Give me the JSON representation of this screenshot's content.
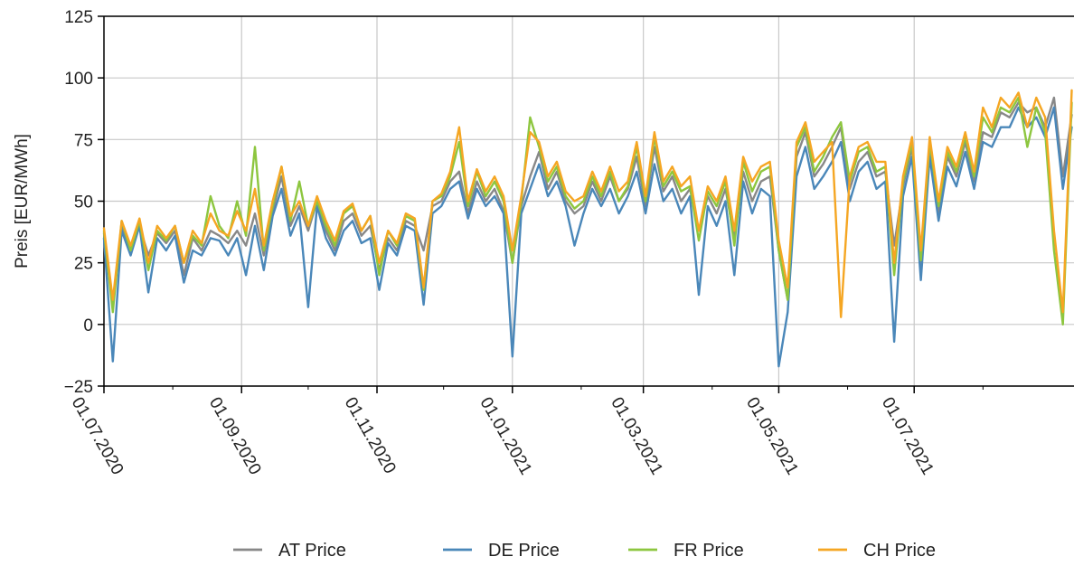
{
  "chart_data": {
    "type": "line",
    "title": "",
    "xlabel": "",
    "ylabel": "Preis [EUR/MWh]",
    "ylim": [
      -25,
      125
    ],
    "xlim": [
      "2020-07-01",
      "2021-09-11"
    ],
    "y_ticks": [
      -25,
      0,
      25,
      50,
      75,
      100,
      125
    ],
    "x_ticks": [
      {
        "date": "2020-07-01",
        "label": "01.07.2020"
      },
      {
        "date": "2020-09-01",
        "label": "01.09.2020"
      },
      {
        "date": "2020-11-01",
        "label": "01.11.2020"
      },
      {
        "date": "2021-01-01",
        "label": "01.01.2021"
      },
      {
        "date": "2021-03-01",
        "label": "01.03.2021"
      },
      {
        "date": "2021-05-01",
        "label": "01.05.2021"
      },
      {
        "date": "2021-07-01",
        "label": "01.07.2021"
      }
    ],
    "grid": true,
    "legend_position": "bottom",
    "sampling": "every 4 days, values estimated from the plot",
    "series": [
      {
        "name": "AT Price",
        "color": "#888888",
        "x": [
          "2020-07-01",
          "2020-07-05",
          "2020-07-09",
          "2020-07-13",
          "2020-07-17",
          "2020-07-21",
          "2020-07-25",
          "2020-07-29",
          "2020-08-02",
          "2020-08-06",
          "2020-08-10",
          "2020-08-14",
          "2020-08-18",
          "2020-08-22",
          "2020-08-26",
          "2020-08-30",
          "2020-09-03",
          "2020-09-07",
          "2020-09-11",
          "2020-09-15",
          "2020-09-19",
          "2020-09-23",
          "2020-09-27",
          "2020-10-01",
          "2020-10-05",
          "2020-10-09",
          "2020-10-13",
          "2020-10-17",
          "2020-10-21",
          "2020-10-25",
          "2020-10-29",
          "2020-11-02",
          "2020-11-06",
          "2020-11-10",
          "2020-11-14",
          "2020-11-18",
          "2020-11-22",
          "2020-11-26",
          "2020-11-30",
          "2020-12-04",
          "2020-12-08",
          "2020-12-12",
          "2020-12-16",
          "2020-12-20",
          "2020-12-24",
          "2020-12-28",
          "2021-01-01",
          "2021-01-05",
          "2021-01-09",
          "2021-01-13",
          "2021-01-17",
          "2021-01-21",
          "2021-01-25",
          "2021-01-29",
          "2021-02-02",
          "2021-02-06",
          "2021-02-10",
          "2021-02-14",
          "2021-02-18",
          "2021-02-22",
          "2021-02-26",
          "2021-03-02",
          "2021-03-06",
          "2021-03-10",
          "2021-03-14",
          "2021-03-18",
          "2021-03-22",
          "2021-03-26",
          "2021-03-30",
          "2021-04-03",
          "2021-04-07",
          "2021-04-11",
          "2021-04-15",
          "2021-04-19",
          "2021-04-23",
          "2021-04-27",
          "2021-05-01",
          "2021-05-05",
          "2021-05-09",
          "2021-05-13",
          "2021-05-17",
          "2021-05-21",
          "2021-05-25",
          "2021-05-29",
          "2021-06-02",
          "2021-06-06",
          "2021-06-10",
          "2021-06-14",
          "2021-06-18",
          "2021-06-22",
          "2021-06-26",
          "2021-06-30",
          "2021-07-04",
          "2021-07-08",
          "2021-07-12",
          "2021-07-16",
          "2021-07-20",
          "2021-07-24",
          "2021-07-28",
          "2021-08-01",
          "2021-08-05",
          "2021-08-09",
          "2021-08-13",
          "2021-08-17",
          "2021-08-21",
          "2021-08-25",
          "2021-08-29",
          "2021-09-02",
          "2021-09-06",
          "2021-09-10"
        ],
        "values": [
          37,
          8,
          40,
          30,
          40,
          28,
          37,
          33,
          38,
          20,
          35,
          30,
          38,
          36,
          33,
          38,
          32,
          45,
          28,
          46,
          60,
          40,
          48,
          38,
          50,
          38,
          30,
          42,
          45,
          36,
          40,
          22,
          35,
          30,
          42,
          40,
          30,
          48,
          50,
          58,
          62,
          45,
          58,
          50,
          55,
          46,
          25,
          48,
          60,
          70,
          55,
          62,
          50,
          45,
          48,
          58,
          50,
          60,
          50,
          55,
          68,
          48,
          72,
          54,
          60,
          50,
          55,
          38,
          52,
          45,
          55,
          35,
          62,
          50,
          58,
          60,
          30,
          10,
          68,
          78,
          60,
          65,
          72,
          80,
          55,
          66,
          70,
          60,
          62,
          32,
          56,
          72,
          20,
          72,
          45,
          68,
          60,
          74,
          58,
          78,
          76,
          86,
          84,
          90,
          86,
          88,
          80,
          92,
          60,
          85
        ]
      },
      {
        "name": "DE Price",
        "color": "#4a87b9",
        "x": [
          "2020-07-01",
          "2020-07-05",
          "2020-07-09",
          "2020-07-13",
          "2020-07-17",
          "2020-07-21",
          "2020-07-25",
          "2020-07-29",
          "2020-08-02",
          "2020-08-06",
          "2020-08-10",
          "2020-08-14",
          "2020-08-18",
          "2020-08-22",
          "2020-08-26",
          "2020-08-30",
          "2020-09-03",
          "2020-09-07",
          "2020-09-11",
          "2020-09-15",
          "2020-09-19",
          "2020-09-23",
          "2020-09-27",
          "2020-10-01",
          "2020-10-05",
          "2020-10-09",
          "2020-10-13",
          "2020-10-17",
          "2020-10-21",
          "2020-10-25",
          "2020-10-29",
          "2020-11-02",
          "2020-11-06",
          "2020-11-10",
          "2020-11-14",
          "2020-11-18",
          "2020-11-22",
          "2020-11-26",
          "2020-11-30",
          "2020-12-04",
          "2020-12-08",
          "2020-12-12",
          "2020-12-16",
          "2020-12-20",
          "2020-12-24",
          "2020-12-28",
          "2021-01-01",
          "2021-01-05",
          "2021-01-09",
          "2021-01-13",
          "2021-01-17",
          "2021-01-21",
          "2021-01-25",
          "2021-01-29",
          "2021-02-02",
          "2021-02-06",
          "2021-02-10",
          "2021-02-14",
          "2021-02-18",
          "2021-02-22",
          "2021-02-26",
          "2021-03-02",
          "2021-03-06",
          "2021-03-10",
          "2021-03-14",
          "2021-03-18",
          "2021-03-22",
          "2021-03-26",
          "2021-03-30",
          "2021-04-03",
          "2021-04-07",
          "2021-04-11",
          "2021-04-15",
          "2021-04-19",
          "2021-04-23",
          "2021-04-27",
          "2021-05-01",
          "2021-05-05",
          "2021-05-09",
          "2021-05-13",
          "2021-05-17",
          "2021-05-21",
          "2021-05-25",
          "2021-05-29",
          "2021-06-02",
          "2021-06-06",
          "2021-06-10",
          "2021-06-14",
          "2021-06-18",
          "2021-06-22",
          "2021-06-26",
          "2021-06-30",
          "2021-07-04",
          "2021-07-08",
          "2021-07-12",
          "2021-07-16",
          "2021-07-20",
          "2021-07-24",
          "2021-07-28",
          "2021-08-01",
          "2021-08-05",
          "2021-08-09",
          "2021-08-13",
          "2021-08-17",
          "2021-08-21",
          "2021-08-25",
          "2021-08-29",
          "2021-09-02",
          "2021-09-06",
          "2021-09-10"
        ],
        "values": [
          35,
          -15,
          38,
          28,
          40,
          13,
          35,
          30,
          36,
          17,
          30,
          28,
          35,
          34,
          28,
          35,
          20,
          40,
          22,
          44,
          55,
          36,
          45,
          7,
          48,
          35,
          28,
          38,
          42,
          33,
          35,
          14,
          33,
          28,
          40,
          38,
          8,
          45,
          48,
          55,
          58,
          43,
          55,
          48,
          52,
          45,
          -13,
          45,
          55,
          65,
          52,
          58,
          48,
          32,
          45,
          55,
          48,
          55,
          45,
          52,
          62,
          45,
          65,
          50,
          55,
          45,
          52,
          12,
          48,
          40,
          50,
          20,
          58,
          45,
          55,
          52,
          -17,
          5,
          60,
          72,
          55,
          60,
          66,
          74,
          50,
          62,
          66,
          55,
          58,
          -7,
          52,
          68,
          18,
          68,
          42,
          64,
          56,
          70,
          55,
          74,
          72,
          80,
          80,
          88,
          80,
          84,
          76,
          88,
          55,
          80
        ]
      },
      {
        "name": "FR Price",
        "color": "#8dc63f",
        "x": [
          "2020-07-01",
          "2020-07-05",
          "2020-07-09",
          "2020-07-13",
          "2020-07-17",
          "2020-07-21",
          "2020-07-25",
          "2020-07-29",
          "2020-08-02",
          "2020-08-06",
          "2020-08-10",
          "2020-08-14",
          "2020-08-18",
          "2020-08-22",
          "2020-08-26",
          "2020-08-30",
          "2020-09-03",
          "2020-09-07",
          "2020-09-11",
          "2020-09-15",
          "2020-09-19",
          "2020-09-23",
          "2020-09-27",
          "2020-10-01",
          "2020-10-05",
          "2020-10-09",
          "2020-10-13",
          "2020-10-17",
          "2020-10-21",
          "2020-10-25",
          "2020-10-29",
          "2020-11-02",
          "2020-11-06",
          "2020-11-10",
          "2020-11-14",
          "2020-11-18",
          "2020-11-22",
          "2020-11-26",
          "2020-11-30",
          "2020-12-04",
          "2020-12-08",
          "2020-12-12",
          "2020-12-16",
          "2020-12-20",
          "2020-12-24",
          "2020-12-28",
          "2021-01-01",
          "2021-01-05",
          "2021-01-09",
          "2021-01-13",
          "2021-01-17",
          "2021-01-21",
          "2021-01-25",
          "2021-01-29",
          "2021-02-02",
          "2021-02-06",
          "2021-02-10",
          "2021-02-14",
          "2021-02-18",
          "2021-02-22",
          "2021-02-26",
          "2021-03-02",
          "2021-03-06",
          "2021-03-10",
          "2021-03-14",
          "2021-03-18",
          "2021-03-22",
          "2021-03-26",
          "2021-03-30",
          "2021-04-03",
          "2021-04-07",
          "2021-04-11",
          "2021-04-15",
          "2021-04-19",
          "2021-04-23",
          "2021-04-27",
          "2021-05-01",
          "2021-05-05",
          "2021-05-09",
          "2021-05-13",
          "2021-05-17",
          "2021-05-21",
          "2021-05-25",
          "2021-05-29",
          "2021-06-02",
          "2021-06-06",
          "2021-06-10",
          "2021-06-14",
          "2021-06-18",
          "2021-06-22",
          "2021-06-26",
          "2021-06-30",
          "2021-07-04",
          "2021-07-08",
          "2021-07-12",
          "2021-07-16",
          "2021-07-20",
          "2021-07-24",
          "2021-07-28",
          "2021-08-01",
          "2021-08-05",
          "2021-08-09",
          "2021-08-13",
          "2021-08-17",
          "2021-08-21",
          "2021-08-25",
          "2021-08-29",
          "2021-09-02",
          "2021-09-06",
          "2021-09-10"
        ],
        "values": [
          38,
          5,
          42,
          30,
          42,
          22,
          38,
          34,
          40,
          25,
          36,
          32,
          52,
          40,
          35,
          50,
          36,
          72,
          30,
          48,
          64,
          42,
          58,
          40,
          50,
          40,
          32,
          45,
          48,
          38,
          44,
          20,
          38,
          32,
          44,
          42,
          14,
          50,
          52,
          60,
          74,
          48,
          62,
          52,
          58,
          50,
          25,
          50,
          84,
          72,
          58,
          64,
          52,
          47,
          50,
          60,
          52,
          62,
          50,
          56,
          72,
          50,
          76,
          56,
          62,
          54,
          56,
          34,
          54,
          48,
          58,
          32,
          66,
          54,
          62,
          64,
          30,
          10,
          72,
          80,
          62,
          68,
          76,
          82,
          58,
          70,
          72,
          62,
          64,
          20,
          58,
          74,
          26,
          74,
          48,
          70,
          62,
          76,
          60,
          84,
          78,
          88,
          86,
          92,
          72,
          88,
          78,
          30,
          0,
          90
        ]
      },
      {
        "name": "CH Price",
        "color": "#f5a623",
        "x": [
          "2020-07-01",
          "2020-07-05",
          "2020-07-09",
          "2020-07-13",
          "2020-07-17",
          "2020-07-21",
          "2020-07-25",
          "2020-07-29",
          "2020-08-02",
          "2020-08-06",
          "2020-08-10",
          "2020-08-14",
          "2020-08-18",
          "2020-08-22",
          "2020-08-26",
          "2020-08-30",
          "2020-09-03",
          "2020-09-07",
          "2020-09-11",
          "2020-09-15",
          "2020-09-19",
          "2020-09-23",
          "2020-09-27",
          "2020-10-01",
          "2020-10-05",
          "2020-10-09",
          "2020-10-13",
          "2020-10-17",
          "2020-10-21",
          "2020-10-25",
          "2020-10-29",
          "2020-11-02",
          "2020-11-06",
          "2020-11-10",
          "2020-11-14",
          "2020-11-18",
          "2020-11-22",
          "2020-11-26",
          "2020-11-30",
          "2020-12-04",
          "2020-12-08",
          "2020-12-12",
          "2020-12-16",
          "2020-12-20",
          "2020-12-24",
          "2020-12-28",
          "2021-01-01",
          "2021-01-05",
          "2021-01-09",
          "2021-01-13",
          "2021-01-17",
          "2021-01-21",
          "2021-01-25",
          "2021-01-29",
          "2021-02-02",
          "2021-02-06",
          "2021-02-10",
          "2021-02-14",
          "2021-02-18",
          "2021-02-22",
          "2021-02-26",
          "2021-03-02",
          "2021-03-06",
          "2021-03-10",
          "2021-03-14",
          "2021-03-18",
          "2021-03-22",
          "2021-03-26",
          "2021-03-30",
          "2021-04-03",
          "2021-04-07",
          "2021-04-11",
          "2021-04-15",
          "2021-04-19",
          "2021-04-23",
          "2021-04-27",
          "2021-05-01",
          "2021-05-05",
          "2021-05-09",
          "2021-05-13",
          "2021-05-17",
          "2021-05-21",
          "2021-05-25",
          "2021-05-29",
          "2021-06-02",
          "2021-06-06",
          "2021-06-10",
          "2021-06-14",
          "2021-06-18",
          "2021-06-22",
          "2021-06-26",
          "2021-06-30",
          "2021-07-04",
          "2021-07-08",
          "2021-07-12",
          "2021-07-16",
          "2021-07-20",
          "2021-07-24",
          "2021-07-28",
          "2021-08-01",
          "2021-08-05",
          "2021-08-09",
          "2021-08-13",
          "2021-08-17",
          "2021-08-21",
          "2021-08-25",
          "2021-08-29",
          "2021-09-02",
          "2021-09-06",
          "2021-09-10"
        ],
        "values": [
          39,
          10,
          42,
          32,
          43,
          25,
          40,
          35,
          40,
          25,
          38,
          33,
          45,
          38,
          36,
          46,
          38,
          55,
          32,
          50,
          64,
          44,
          50,
          40,
          52,
          42,
          34,
          46,
          49,
          38,
          44,
          25,
          38,
          33,
          45,
          43,
          15,
          50,
          53,
          62,
          80,
          50,
          63,
          54,
          60,
          52,
          30,
          52,
          78,
          74,
          60,
          66,
          54,
          50,
          52,
          62,
          54,
          64,
          54,
          58,
          74,
          52,
          78,
          58,
          64,
          56,
          60,
          38,
          56,
          50,
          60,
          38,
          68,
          58,
          64,
          66,
          34,
          15,
          74,
          82,
          66,
          70,
          74,
          3,
          60,
          72,
          74,
          66,
          66,
          25,
          60,
          76,
          30,
          76,
          50,
          72,
          64,
          78,
          62,
          88,
          80,
          92,
          88,
          94,
          80,
          92,
          84,
          38,
          5,
          95
        ]
      }
    ]
  },
  "legend": {
    "items": [
      {
        "label": "AT Price",
        "color": "#888888"
      },
      {
        "label": "DE Price",
        "color": "#4a87b9"
      },
      {
        "label": "FR Price",
        "color": "#8dc63f"
      },
      {
        "label": "CH Price",
        "color": "#f5a623"
      }
    ]
  }
}
